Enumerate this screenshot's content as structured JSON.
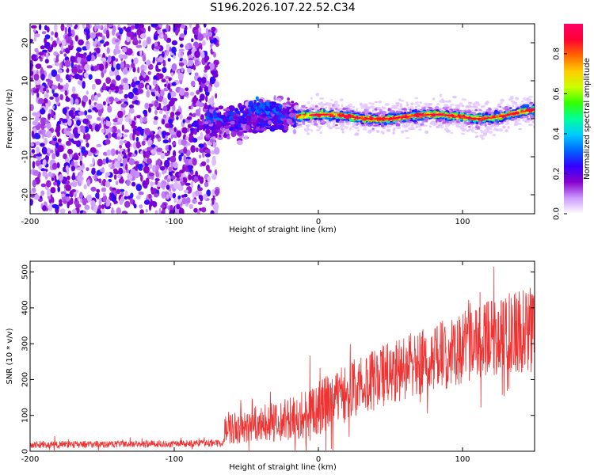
{
  "title": "S196.2026.107.22.52.C34",
  "chart_data": [
    {
      "type": "heatmap",
      "xlabel": "Height of straight line (km)",
      "ylabel": "Frequency (Hz)",
      "xlim": [
        -200,
        150
      ],
      "ylim": [
        -25,
        25
      ],
      "xticks": [
        -200,
        -100,
        0,
        100
      ],
      "yticks": [
        20,
        10,
        0,
        -10,
        -20
      ],
      "colorbar": {
        "label": "Normalized spectral amplitude",
        "range": [
          0,
          0.95
        ],
        "ticks": [
          "0.0",
          "0.2",
          "0.4",
          "0.6",
          "0.8"
        ],
        "colors": [
          "#ffffff",
          "#cc99ff",
          "#8800cc",
          "#3300ff",
          "#0066ff",
          "#00ccff",
          "#00ff99",
          "#33ff00",
          "#ccff00",
          "#ffcc00",
          "#ff6600",
          "#ff0033",
          "#ff0066"
        ]
      },
      "features": [
        {
          "x_range": [
            -200,
            -70
          ],
          "freq_range": [
            -25,
            25
          ],
          "amplitude": 0.1,
          "note": "broadband noise"
        },
        {
          "x_range": [
            -78,
            -15
          ],
          "freq_range": [
            -10,
            7
          ],
          "amplitude": 0.25,
          "note": "transition region"
        },
        {
          "x_range": [
            -15,
            150
          ],
          "freq_center": 0.5,
          "amplitude": 0.9,
          "note": "narrow peak near 0-2 Hz"
        }
      ]
    },
    {
      "type": "line",
      "xlabel": "Height of straight line (km)",
      "ylabel": "SNR (10 * v/v)",
      "xlim": [
        -200,
        150
      ],
      "ylim": [
        0,
        530
      ],
      "xticks": [
        -200,
        -100,
        0,
        100
      ],
      "yticks": [
        0,
        100,
        200,
        300,
        400,
        500
      ],
      "color": "#ee3333",
      "trend": {
        "x": [
          -200,
          -66,
          -65,
          -40,
          -20,
          0,
          20,
          50,
          80,
          100,
          120,
          150
        ],
        "y": [
          18,
          22,
          65,
          75,
          90,
          120,
          170,
          220,
          260,
          285,
          320,
          340
        ]
      },
      "noise": {
        "x": [
          -200,
          -66,
          -65,
          -20,
          0,
          100,
          150
        ],
        "amp": [
          10,
          10,
          45,
          60,
          75,
          100,
          120
        ]
      }
    }
  ]
}
